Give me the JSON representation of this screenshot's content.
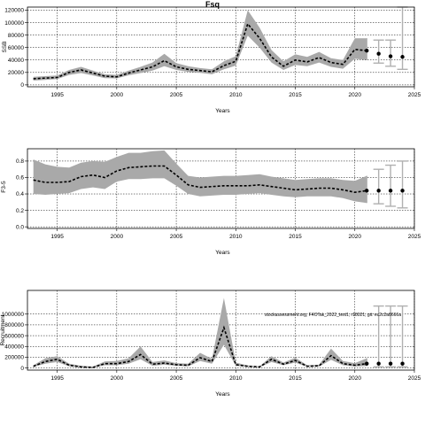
{
  "title": "Fsq",
  "chart_data": [
    {
      "type": "line",
      "xlabel": "Years",
      "ylabel": "SSB",
      "xlim": [
        1992.5,
        2025
      ],
      "ylim": [
        -3000,
        125000
      ],
      "x_ticks": [
        1995,
        2000,
        2005,
        2010,
        2015,
        2020,
        2025
      ],
      "y_ticks": [
        0,
        20000,
        40000,
        60000,
        80000,
        100000,
        120000
      ],
      "grid": true,
      "series": [
        {
          "kind": "assessment",
          "x": [
            1993,
            1994,
            1995,
            1996,
            1997,
            1998,
            1999,
            2000,
            2001,
            2002,
            2003,
            2004,
            2005,
            2006,
            2007,
            2008,
            2009,
            2010,
            2011,
            2012,
            2013,
            2014,
            2015,
            2016,
            2017,
            2018,
            2019,
            2020,
            2021
          ],
          "values": [
            10000,
            11000,
            12000,
            20000,
            24000,
            19000,
            14000,
            13000,
            19000,
            24000,
            29000,
            39000,
            29000,
            25000,
            23000,
            21000,
            31000,
            38000,
            98000,
            75000,
            45000,
            30000,
            40000,
            37000,
            44000,
            36000,
            33000,
            57000,
            55000
          ],
          "upper": [
            13000,
            14000,
            15000,
            24000,
            29000,
            23000,
            17000,
            16000,
            23000,
            29000,
            36000,
            50000,
            35000,
            30000,
            27000,
            25000,
            38000,
            46000,
            120000,
            92000,
            56000,
            38000,
            49000,
            45000,
            53000,
            43000,
            40000,
            75000,
            75000
          ],
          "lower": [
            7000,
            8000,
            9500,
            16000,
            19000,
            15000,
            11000,
            10500,
            15500,
            19000,
            23000,
            30000,
            24000,
            21000,
            19500,
            17000,
            25000,
            31000,
            79000,
            60000,
            36000,
            24000,
            32000,
            30000,
            36000,
            29000,
            26000,
            42000,
            40000
          ]
        },
        {
          "kind": "forecast",
          "x": [
            2022,
            2023,
            2024
          ],
          "values": [
            50000,
            46000,
            45000
          ],
          "upper": [
            72000,
            72000,
            130000
          ],
          "lower": [
            35000,
            30000,
            25000
          ]
        }
      ]
    },
    {
      "type": "line",
      "xlabel": "Years",
      "ylabel": "F3-5",
      "xlim": [
        1992.5,
        2025
      ],
      "ylim": [
        -0.02,
        0.95
      ],
      "x_ticks": [
        1995,
        2000,
        2005,
        2010,
        2015,
        2020,
        2025
      ],
      "y_ticks": [
        0.0,
        0.2,
        0.4,
        0.6,
        0.8
      ],
      "grid": true,
      "series": [
        {
          "kind": "assessment",
          "x": [
            1993,
            1994,
            1995,
            1996,
            1997,
            1998,
            1999,
            2000,
            2001,
            2002,
            2003,
            2004,
            2005,
            2006,
            2007,
            2008,
            2009,
            2010,
            2011,
            2012,
            2013,
            2014,
            2015,
            2016,
            2017,
            2018,
            2019,
            2020,
            2021
          ],
          "values": [
            0.57,
            0.54,
            0.54,
            0.55,
            0.61,
            0.63,
            0.6,
            0.68,
            0.72,
            0.73,
            0.74,
            0.74,
            0.63,
            0.51,
            0.48,
            0.49,
            0.5,
            0.5,
            0.5,
            0.51,
            0.49,
            0.47,
            0.45,
            0.46,
            0.47,
            0.47,
            0.45,
            0.42,
            0.44
          ],
          "upper": [
            0.82,
            0.76,
            0.73,
            0.72,
            0.78,
            0.8,
            0.79,
            0.85,
            0.9,
            0.9,
            0.92,
            0.93,
            0.77,
            0.62,
            0.6,
            0.61,
            0.62,
            0.62,
            0.63,
            0.64,
            0.61,
            0.59,
            0.57,
            0.58,
            0.59,
            0.59,
            0.57,
            0.56,
            0.62
          ],
          "lower": [
            0.4,
            0.39,
            0.4,
            0.41,
            0.46,
            0.48,
            0.46,
            0.55,
            0.58,
            0.58,
            0.59,
            0.59,
            0.5,
            0.4,
            0.37,
            0.38,
            0.39,
            0.39,
            0.4,
            0.41,
            0.39,
            0.37,
            0.36,
            0.37,
            0.37,
            0.37,
            0.35,
            0.31,
            0.29
          ]
        },
        {
          "kind": "forecast",
          "x": [
            2022,
            2023,
            2024
          ],
          "values": [
            0.44,
            0.44,
            0.44
          ],
          "upper": [
            0.7,
            0.75,
            0.8
          ],
          "lower": [
            0.28,
            0.25,
            0.23
          ]
        }
      ]
    },
    {
      "type": "line",
      "xlabel": "Years",
      "ylabel": "Recruitment",
      "xlim": [
        1992.5,
        2025
      ],
      "ylim": [
        -40000,
        1440000
      ],
      "x_ticks": [
        1995,
        2000,
        2005,
        2010,
        2015,
        2020,
        2025
      ],
      "y_ticks": [
        0,
        200000,
        400000,
        600000,
        800000,
        1000000
      ],
      "y_tick_labels": [
        "0",
        "200000",
        "400000",
        "600000",
        "800000",
        "1000000"
      ],
      "grid": true,
      "annotation": "stockassessment.org, F4OTak_2022_test1, r18021, git: ec2c2a8666a",
      "series": [
        {
          "kind": "assessment",
          "x": [
            1993,
            1994,
            1995,
            1996,
            1997,
            1998,
            1999,
            2000,
            2001,
            2002,
            2003,
            2004,
            2005,
            2006,
            2007,
            2008,
            2009,
            2010,
            2011,
            2012,
            2013,
            2014,
            2015,
            2016,
            2017,
            2018,
            2019,
            2020,
            2021
          ],
          "values": [
            30000,
            120000,
            160000,
            50000,
            20000,
            10000,
            80000,
            80000,
            120000,
            250000,
            70000,
            90000,
            60000,
            50000,
            190000,
            120000,
            750000,
            60000,
            30000,
            20000,
            160000,
            70000,
            140000,
            30000,
            40000,
            230000,
            80000,
            50000,
            80000
          ],
          "upper": [
            50000,
            180000,
            220000,
            80000,
            40000,
            25000,
            120000,
            130000,
            180000,
            400000,
            110000,
            140000,
            90000,
            80000,
            280000,
            170000,
            1300000,
            100000,
            45000,
            30000,
            220000,
            100000,
            190000,
            50000,
            60000,
            360000,
            130000,
            90000,
            180000
          ],
          "lower": [
            20000,
            80000,
            110000,
            30000,
            10000,
            5000,
            50000,
            50000,
            80000,
            160000,
            40000,
            60000,
            40000,
            30000,
            130000,
            80000,
            430000,
            40000,
            20000,
            12000,
            110000,
            50000,
            100000,
            20000,
            25000,
            150000,
            50000,
            25000,
            35000
          ]
        },
        {
          "kind": "forecast",
          "x": [
            2022,
            2023,
            2024
          ],
          "values": [
            80000,
            80000,
            80000
          ],
          "upper": [
            1150000,
            1150000,
            1150000
          ],
          "lower": [
            20000,
            20000,
            20000
          ]
        }
      ]
    }
  ]
}
